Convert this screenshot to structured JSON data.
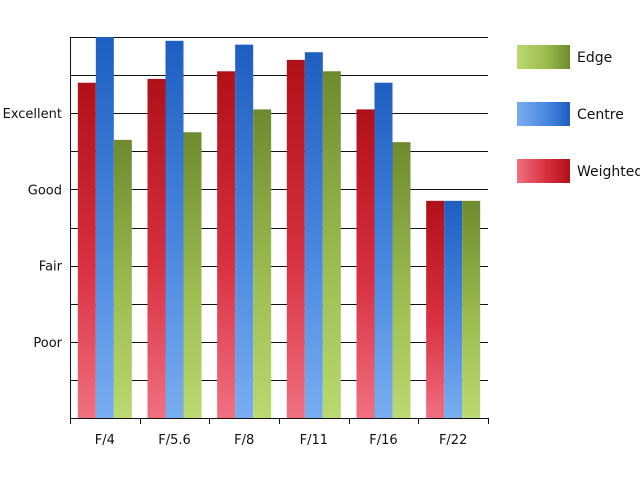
{
  "chart_data": {
    "type": "bar",
    "title": "",
    "xlabel": "",
    "ylabel": "",
    "categories": [
      "F/4",
      "F/5.6",
      "F/8",
      "F/11",
      "F/16",
      "F/22"
    ],
    "y_tick_labels": [
      "Poor",
      "Fair",
      "Good",
      "Excellent"
    ],
    "y_tick_values": [
      1,
      2,
      3,
      4
    ],
    "ylim": [
      0,
      5
    ],
    "grid": true,
    "legend_placement": "right",
    "legend_order": [
      "Edge",
      "Centre",
      "Weighted"
    ],
    "series": [
      {
        "name": "Weighted",
        "values": [
          4.4,
          4.45,
          4.55,
          4.7,
          4.05,
          2.85
        ],
        "colors": {
          "light": "#f07080",
          "mid": "#d83040",
          "dark": "#b01018"
        }
      },
      {
        "name": "Centre",
        "values": [
          5.0,
          4.95,
          4.9,
          4.8,
          4.4,
          2.85
        ],
        "colors": {
          "light": "#78aef0",
          "mid": "#4a88e0",
          "dark": "#1e5ec0"
        }
      },
      {
        "name": "Edge",
        "values": [
          3.65,
          3.75,
          4.05,
          4.55,
          3.62,
          2.85
        ],
        "colors": {
          "light": "#bcd870",
          "mid": "#9cbc50",
          "dark": "#6e8a2e"
        }
      }
    ]
  }
}
